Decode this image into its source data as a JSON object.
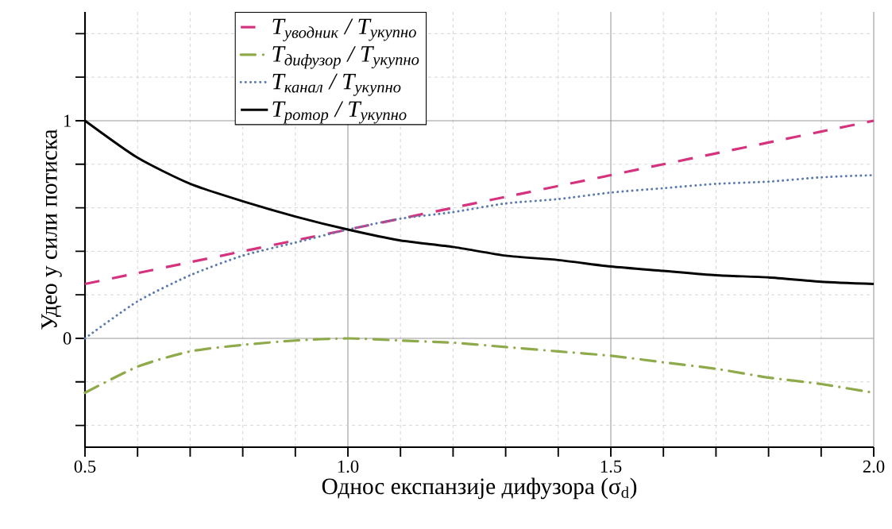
{
  "chart_data": {
    "type": "line",
    "xlabel": "Однос експанзије дифузора (σ$_{d}$)",
    "ylabel": "Удео у сили потиска",
    "x": [
      0.5,
      0.6,
      0.7,
      0.8,
      0.9,
      1.0,
      1.1,
      1.2,
      1.3,
      1.4,
      1.5,
      1.6,
      1.7,
      1.8,
      1.9,
      2.0
    ],
    "series": [
      {
        "name": "T$_{уводник}$ / T$_{укупно}$",
        "color": "#d6337f",
        "line_style": "dashed",
        "values": [
          0.25,
          0.3,
          0.35,
          0.4,
          0.45,
          0.5,
          0.55,
          0.6,
          0.65,
          0.7,
          0.75,
          0.8,
          0.85,
          0.9,
          0.95,
          1.0
        ]
      },
      {
        "name": "T$_{дифузор}$ / T$_{укупно}$",
        "color": "#8faa4a",
        "line_style": "dashdot",
        "values": [
          -0.25,
          -0.13,
          -0.06,
          -0.03,
          -0.01,
          0.0,
          -0.01,
          -0.02,
          -0.04,
          -0.06,
          -0.08,
          -0.11,
          -0.14,
          -0.18,
          -0.21,
          -0.25
        ]
      },
      {
        "name": "T$_{канал}$ / T$_{укупно}$",
        "color": "#5b7bb0",
        "line_style": "dotted",
        "values": [
          0.0,
          0.17,
          0.29,
          0.38,
          0.44,
          0.5,
          0.55,
          0.58,
          0.62,
          0.64,
          0.67,
          0.69,
          0.71,
          0.72,
          0.74,
          0.75
        ]
      },
      {
        "name": "T$_{ротор}$ / T$_{укупно}$",
        "color": "#000000",
        "line_style": "solid",
        "values": [
          1.0,
          0.83,
          0.71,
          0.63,
          0.56,
          0.5,
          0.45,
          0.42,
          0.38,
          0.36,
          0.33,
          0.31,
          0.29,
          0.28,
          0.26,
          0.25
        ]
      }
    ],
    "xlim": [
      0.5,
      2.0
    ],
    "ylim": [
      -0.5,
      1.5
    ],
    "xticks": [
      {
        "value": 0.5,
        "label": "0.5"
      },
      {
        "value": 0.6,
        "label": null
      },
      {
        "value": 0.7,
        "label": null
      },
      {
        "value": 0.8,
        "label": null
      },
      {
        "value": 0.9,
        "label": null
      },
      {
        "value": 1.0,
        "label": "1.0"
      },
      {
        "value": 1.1,
        "label": null
      },
      {
        "value": 1.2,
        "label": null
      },
      {
        "value": 1.3,
        "label": null
      },
      {
        "value": 1.4,
        "label": null
      },
      {
        "value": 1.5,
        "label": "1.5"
      },
      {
        "value": 1.6,
        "label": null
      },
      {
        "value": 1.7,
        "label": null
      },
      {
        "value": 1.8,
        "label": null
      },
      {
        "value": 1.9,
        "label": null
      },
      {
        "value": 2.0,
        "label": "2.0"
      }
    ],
    "yticks": [
      {
        "value": -0.4,
        "label": null
      },
      {
        "value": -0.2,
        "label": null
      },
      0,
      {
        "value": 0.2,
        "label": null
      },
      {
        "value": 0.4,
        "label": null
      },
      {
        "value": 0.6,
        "label": null
      },
      {
        "value": 0.8,
        "label": null
      },
      1,
      {
        "value": 1.2,
        "label": null
      },
      {
        "value": 1.4,
        "label": null
      }
    ],
    "grid": true,
    "legend": "top",
    "marker": "none"
  }
}
